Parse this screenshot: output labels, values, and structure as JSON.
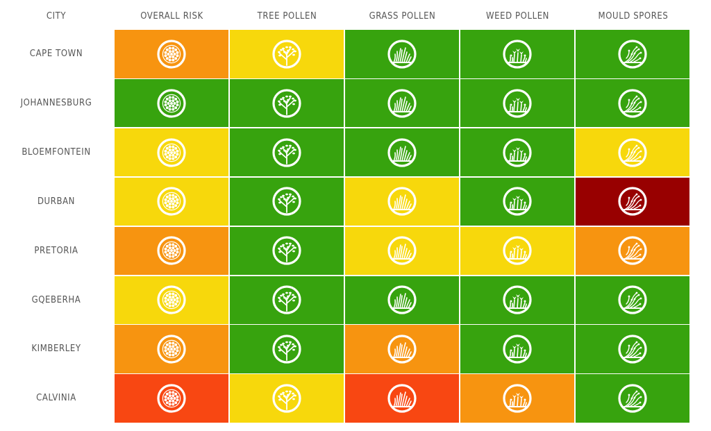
{
  "columns": [
    {
      "label": "CITY",
      "type": "city"
    },
    {
      "label": "OVERALL RISK",
      "type": "overall"
    },
    {
      "label": "TREE POLLEN",
      "type": "tree"
    },
    {
      "label": "GRASS POLLEN",
      "type": "grass"
    },
    {
      "label": "WEED POLLEN",
      "type": "weed"
    },
    {
      "label": "MOULD SPORES",
      "type": "mould"
    }
  ],
  "legend": {
    "low": "#37a30e",
    "moderate": "#f7d80c",
    "high": "#f79410",
    "very_high": "#f84712",
    "extreme": "#980000"
  },
  "rows": [
    {
      "city": "CAPE TOWN",
      "levels": [
        "high",
        "moderate",
        "low",
        "low",
        "low"
      ]
    },
    {
      "city": "JOHANNESBURG",
      "levels": [
        "low",
        "low",
        "low",
        "low",
        "low"
      ]
    },
    {
      "city": "BLOEMFONTEIN",
      "levels": [
        "moderate",
        "low",
        "low",
        "low",
        "moderate"
      ]
    },
    {
      "city": "DURBAN",
      "levels": [
        "moderate",
        "low",
        "moderate",
        "low",
        "extreme"
      ]
    },
    {
      "city": "PRETORIA",
      "levels": [
        "high",
        "low",
        "moderate",
        "moderate",
        "high"
      ]
    },
    {
      "city": "GQEBERHA",
      "levels": [
        "moderate",
        "low",
        "low",
        "low",
        "low"
      ]
    },
    {
      "city": "KIMBERLEY",
      "levels": [
        "high",
        "low",
        "high",
        "low",
        "low"
      ]
    },
    {
      "city": "CALVINIA",
      "levels": [
        "very_high",
        "moderate",
        "very_high",
        "high",
        "low"
      ]
    }
  ],
  "icons": {
    "overall": "pollen-grain-icon",
    "tree": "tree-icon",
    "grass": "grass-icon",
    "weed": "weed-flower-icon",
    "mould": "mould-spores-icon"
  }
}
